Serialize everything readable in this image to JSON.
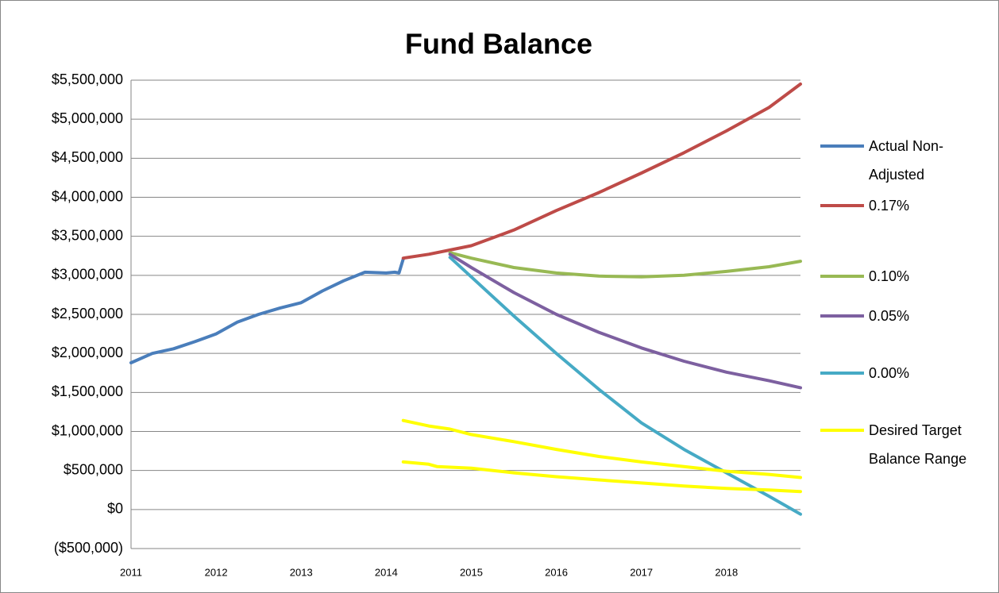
{
  "chart_data": {
    "type": "line",
    "title": "Fund Balance",
    "xlim": [
      2011,
      2018.87
    ],
    "xticks": [
      2011,
      2012,
      2013,
      2014,
      2015,
      2016,
      2017,
      2018
    ],
    "ylim": [
      -500000,
      5500000
    ],
    "yticks": [
      {
        "value": -500000,
        "label": "($500,000)"
      },
      {
        "value": 0,
        "label": "$0"
      },
      {
        "value": 500000,
        "label": "$500,000"
      },
      {
        "value": 1000000,
        "label": "$1,000,000"
      },
      {
        "value": 1500000,
        "label": "$1,500,000"
      },
      {
        "value": 2000000,
        "label": "$2,000,000"
      },
      {
        "value": 2500000,
        "label": "$2,500,000"
      },
      {
        "value": 3000000,
        "label": "$3,000,000"
      },
      {
        "value": 3500000,
        "label": "$3,500,000"
      },
      {
        "value": 4000000,
        "label": "$4,000,000"
      },
      {
        "value": 4500000,
        "label": "$4,500,000"
      },
      {
        "value": 5000000,
        "label": "$5,000,000"
      },
      {
        "value": 5500000,
        "label": "$5,500,000"
      }
    ],
    "grid": true,
    "legend": "right",
    "series": [
      {
        "name": "Actual Non-Adjusted",
        "color": "#4a7ebb",
        "x": [
          2011.0,
          2011.25,
          2011.5,
          2011.75,
          2012.0,
          2012.25,
          2012.5,
          2012.75,
          2013.0,
          2013.25,
          2013.5,
          2013.75,
          2014.0,
          2014.1,
          2014.15,
          2014.2
        ],
        "values": [
          1880000,
          2000000,
          2060000,
          2150000,
          2250000,
          2400000,
          2500000,
          2580000,
          2650000,
          2800000,
          2930000,
          3040000,
          3030000,
          3040000,
          3030000,
          3210000
        ]
      },
      {
        "name": "0.17%",
        "color": "#be4b48",
        "x": [
          2014.2,
          2014.5,
          2015.0,
          2015.5,
          2016.0,
          2016.5,
          2017.0,
          2017.5,
          2018.0,
          2018.5,
          2018.87
        ],
        "values": [
          3220000,
          3270000,
          3380000,
          3580000,
          3830000,
          4060000,
          4310000,
          4570000,
          4850000,
          5150000,
          5450000
        ]
      },
      {
        "name": "0.10%",
        "color": "#98b954",
        "x": [
          2014.75,
          2015.0,
          2015.5,
          2016.0,
          2016.5,
          2017.0,
          2017.5,
          2018.0,
          2018.5,
          2018.87
        ],
        "values": [
          3290000,
          3220000,
          3100000,
          3030000,
          2990000,
          2980000,
          3000000,
          3050000,
          3110000,
          3180000
        ]
      },
      {
        "name": "0.05%",
        "color": "#7d60a0",
        "x": [
          2014.75,
          2015.0,
          2015.5,
          2016.0,
          2016.5,
          2017.0,
          2017.5,
          2018.0,
          2018.5,
          2018.87
        ],
        "values": [
          3270000,
          3100000,
          2780000,
          2500000,
          2270000,
          2070000,
          1900000,
          1760000,
          1650000,
          1560000
        ]
      },
      {
        "name": "0.00%",
        "color": "#46aac5",
        "x": [
          2014.75,
          2015.0,
          2015.5,
          2016.0,
          2016.5,
          2017.0,
          2017.5,
          2018.0,
          2018.5,
          2018.87
        ],
        "values": [
          3230000,
          2980000,
          2480000,
          2000000,
          1540000,
          1110000,
          770000,
          470000,
          170000,
          -60000
        ]
      },
      {
        "name": "Desired Target Balance Range",
        "color": "#ffff00",
        "x": [
          2014.2,
          2014.5,
          2014.75,
          2015.0,
          2015.5,
          2016.0,
          2016.5,
          2017.0,
          2017.5,
          2018.0,
          2018.5,
          2018.87
        ],
        "values": [
          1140000,
          1070000,
          1030000,
          960000,
          870000,
          770000,
          680000,
          610000,
          550000,
          490000,
          450000,
          410000
        ]
      },
      {
        "color": "#ffff00",
        "x": [
          2014.2,
          2014.5,
          2014.6,
          2015.0,
          2015.5,
          2016.0,
          2016.5,
          2017.0,
          2017.5,
          2018.0,
          2018.5,
          2018.87
        ],
        "values": [
          610000,
          580000,
          550000,
          530000,
          470000,
          420000,
          380000,
          340000,
          300000,
          270000,
          250000,
          230000
        ]
      }
    ]
  }
}
